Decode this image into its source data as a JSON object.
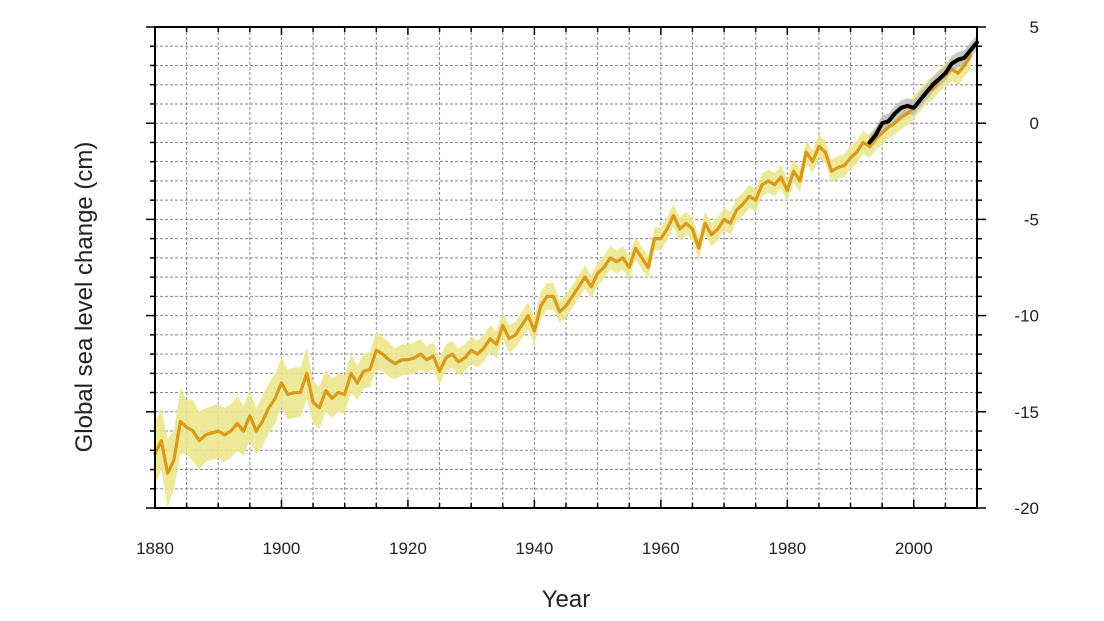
{
  "chart_data": {
    "type": "line",
    "xlabel": "Year",
    "ylabel": "Global sea level change (cm)",
    "xlim": [
      1880,
      2010
    ],
    "ylim": [
      -20,
      5
    ],
    "x_ticks": [
      1880,
      1900,
      1920,
      1940,
      1960,
      1980,
      2000
    ],
    "y_ticks": [
      5,
      0,
      -5,
      -10,
      -15,
      -20
    ],
    "y_axis_side": "right",
    "grid": true,
    "colors": {
      "reconstruction": "#d99a1c",
      "reconstruction_band": "#ece58e",
      "satellite": "#000000",
      "satellite_band": "#b8b8b8"
    },
    "series": [
      {
        "x": [
          1880,
          1881,
          1882,
          1883,
          1884,
          1885,
          1886,
          1887,
          1888,
          1889,
          1890,
          1891,
          1892,
          1893,
          1894,
          1895,
          1896,
          1897,
          1898,
          1899,
          1900,
          1901,
          1902,
          1903,
          1904,
          1905,
          1906,
          1907,
          1908,
          1909,
          1910,
          1911,
          1912,
          1913,
          1914,
          1915,
          1916,
          1917,
          1918,
          1919,
          1920,
          1921,
          1922,
          1923,
          1924,
          1925,
          1926,
          1927,
          1928,
          1929,
          1930,
          1931,
          1932,
          1933,
          1934,
          1935,
          1936,
          1937,
          1938,
          1939,
          1940,
          1941,
          1942,
          1943,
          1944,
          1945,
          1946,
          1947,
          1948,
          1949,
          1950,
          1951,
          1952,
          1953,
          1954,
          1955,
          1956,
          1957,
          1958,
          1959,
          1960,
          1961,
          1962,
          1963,
          1964,
          1965,
          1966,
          1967,
          1968,
          1969,
          1970,
          1971,
          1972,
          1973,
          1974,
          1975,
          1976,
          1977,
          1978,
          1979,
          1980,
          1981,
          1982,
          1983,
          1984,
          1985,
          1986,
          1987,
          1988,
          1989,
          1990,
          1991,
          1992,
          1993,
          1994,
          1995,
          1996,
          1997,
          1998,
          1999,
          2000,
          2001,
          2002,
          2003,
          2004,
          2005,
          2006,
          2007,
          2008,
          2009
        ],
        "values": [
          -17.2,
          -16.5,
          -18.2,
          -17.5,
          -15.5,
          -15.8,
          -16.0,
          -16.5,
          -16.2,
          -16.1,
          -16.0,
          -16.2,
          -16.0,
          -15.6,
          -16.0,
          -15.2,
          -16.0,
          -15.5,
          -14.8,
          -14.3,
          -13.5,
          -14.1,
          -14.0,
          -14.0,
          -13.0,
          -14.5,
          -14.8,
          -13.9,
          -14.3,
          -14.0,
          -14.1,
          -13.0,
          -13.5,
          -12.9,
          -12.8,
          -11.8,
          -12.0,
          -12.3,
          -12.5,
          -12.3,
          -12.3,
          -12.2,
          -12.0,
          -12.3,
          -12.1,
          -12.9,
          -12.2,
          -12.0,
          -12.4,
          -12.2,
          -11.8,
          -12.0,
          -11.7,
          -11.2,
          -11.5,
          -10.5,
          -11.2,
          -11.0,
          -10.5,
          -10.0,
          -10.8,
          -9.5,
          -9.0,
          -9.0,
          -9.8,
          -9.5,
          -9.0,
          -8.5,
          -8.0,
          -8.5,
          -7.8,
          -7.5,
          -7.0,
          -7.2,
          -7.0,
          -7.5,
          -6.5,
          -7.0,
          -7.5,
          -6.0,
          -6.0,
          -5.5,
          -4.8,
          -5.5,
          -5.2,
          -5.5,
          -6.5,
          -5.2,
          -5.8,
          -5.5,
          -5.0,
          -5.2,
          -4.5,
          -4.2,
          -3.8,
          -4.0,
          -3.2,
          -3.0,
          -3.2,
          -2.8,
          -3.5,
          -2.5,
          -3.0,
          -1.5,
          -2.0,
          -1.2,
          -1.5,
          -2.5,
          -2.3,
          -2.2,
          -1.8,
          -1.5,
          -1.0,
          -1.2,
          -0.8,
          -0.5,
          -0.2,
          0.0,
          0.3,
          0.5,
          0.8,
          1.2,
          1.6,
          1.8,
          2.2,
          2.5,
          2.8,
          2.6,
          3.0,
          3.5
        ],
        "band_low": [
          -18.8,
          -18.0,
          -20.0,
          -19.0,
          -17.2,
          -17.2,
          -17.6,
          -18.0,
          -17.6,
          -17.5,
          -17.4,
          -17.6,
          -17.4,
          -17.0,
          -17.3,
          -16.5,
          -17.2,
          -16.8,
          -16.1,
          -15.6,
          -14.8,
          -15.4,
          -15.3,
          -15.3,
          -14.3,
          -15.6,
          -15.9,
          -15.0,
          -15.3,
          -15.0,
          -15.1,
          -14.0,
          -14.4,
          -13.8,
          -13.7,
          -12.8,
          -12.9,
          -13.2,
          -13.3,
          -13.1,
          -13.1,
          -13.0,
          -12.8,
          -13.0,
          -12.8,
          -13.6,
          -12.9,
          -12.7,
          -13.1,
          -12.9,
          -12.5,
          -12.7,
          -12.4,
          -11.9,
          -12.2,
          -11.2,
          -11.9,
          -11.7,
          -11.2,
          -10.7,
          -11.5,
          -10.2,
          -9.7,
          -9.7,
          -10.4,
          -10.1,
          -9.6,
          -9.1,
          -8.6,
          -9.1,
          -8.4,
          -8.1,
          -7.6,
          -7.8,
          -7.6,
          -8.1,
          -7.1,
          -7.6,
          -8.1,
          -6.6,
          -6.6,
          -6.1,
          -5.4,
          -6.1,
          -5.8,
          -6.1,
          -7.1,
          -5.8,
          -6.4,
          -6.1,
          -5.6,
          -5.8,
          -5.1,
          -4.8,
          -4.4,
          -4.6,
          -3.8,
          -3.6,
          -3.8,
          -3.4,
          -4.1,
          -3.1,
          -3.6,
          -2.1,
          -2.6,
          -1.8,
          -2.1,
          -3.1,
          -2.9,
          -2.8,
          -2.4,
          -2.1,
          -1.6,
          -1.8,
          -1.4,
          -1.1,
          -0.8,
          -0.6,
          -0.3,
          -0.1,
          0.2,
          0.6,
          1.0,
          1.2,
          1.6,
          1.9,
          2.2,
          2.0,
          2.4,
          2.8
        ],
        "band_high": [
          -15.6,
          -14.8,
          -16.4,
          -16.0,
          -13.8,
          -14.4,
          -14.4,
          -15.0,
          -14.8,
          -14.7,
          -14.6,
          -14.8,
          -14.6,
          -14.2,
          -14.7,
          -13.9,
          -14.8,
          -14.2,
          -13.5,
          -13.0,
          -12.2,
          -12.8,
          -12.7,
          -12.7,
          -11.7,
          -13.4,
          -13.7,
          -12.8,
          -13.3,
          -13.0,
          -13.1,
          -12.0,
          -12.6,
          -12.0,
          -11.9,
          -10.8,
          -11.1,
          -11.4,
          -11.7,
          -11.5,
          -11.5,
          -11.4,
          -11.2,
          -11.6,
          -11.4,
          -12.2,
          -11.5,
          -11.3,
          -11.7,
          -11.5,
          -11.1,
          -11.3,
          -11.0,
          -10.5,
          -10.8,
          -9.8,
          -10.5,
          -10.3,
          -9.8,
          -9.3,
          -10.1,
          -8.8,
          -8.3,
          -8.3,
          -9.2,
          -8.9,
          -8.4,
          -7.9,
          -7.4,
          -7.9,
          -7.2,
          -6.9,
          -6.4,
          -6.6,
          -6.4,
          -6.9,
          -5.9,
          -6.4,
          -6.9,
          -5.4,
          -5.4,
          -4.9,
          -4.2,
          -4.9,
          -4.6,
          -4.9,
          -5.9,
          -4.6,
          -5.2,
          -4.9,
          -4.4,
          -4.6,
          -3.9,
          -3.6,
          -3.2,
          -3.4,
          -2.6,
          -2.4,
          -2.6,
          -2.2,
          -2.9,
          -1.9,
          -2.4,
          -0.9,
          -1.4,
          -0.6,
          -0.9,
          -1.9,
          -1.7,
          -1.6,
          -1.2,
          -0.9,
          -0.4,
          -0.6,
          -0.2,
          0.1,
          0.4,
          0.6,
          0.9,
          1.1,
          1.4,
          1.8,
          2.2,
          2.4,
          2.8,
          3.1,
          3.4,
          3.2,
          3.6,
          4.2
        ]
      },
      {
        "x": [
          1993,
          1994,
          1995,
          1996,
          1997,
          1998,
          1999,
          2000,
          2001,
          2002,
          2003,
          2004,
          2005,
          2006,
          2007,
          2008,
          2009,
          2010
        ],
        "values": [
          -1.0,
          -0.6,
          0.0,
          0.1,
          0.5,
          0.8,
          0.9,
          0.8,
          1.2,
          1.6,
          2.0,
          2.3,
          2.6,
          3.1,
          3.3,
          3.4,
          3.8,
          4.2
        ],
        "band_low": [
          -1.4,
          -1.0,
          -0.4,
          -0.3,
          0.1,
          0.4,
          0.5,
          0.4,
          0.8,
          1.2,
          1.6,
          1.9,
          2.2,
          2.7,
          2.9,
          3.0,
          3.4,
          3.8
        ],
        "band_high": [
          -0.6,
          -0.2,
          0.4,
          0.5,
          0.9,
          1.2,
          1.3,
          1.2,
          1.6,
          2.0,
          2.4,
          2.7,
          3.0,
          3.5,
          3.7,
          3.8,
          4.2,
          4.6
        ]
      }
    ]
  }
}
